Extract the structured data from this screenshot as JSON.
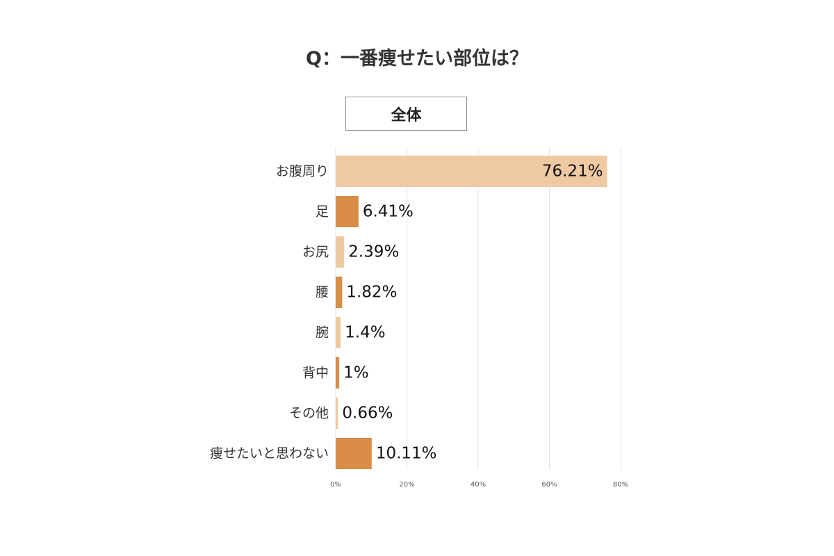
{
  "chart_data": {
    "type": "bar",
    "orientation": "horizontal",
    "title": "Q：一番痩せたい部位は？",
    "subgroup_label": "全体",
    "categories": [
      "お腹周り",
      "足",
      "お尻",
      "腰",
      "腕",
      "背中",
      "その他",
      "痩せたいと思わない"
    ],
    "values": [
      76.21,
      6.41,
      2.39,
      1.82,
      1.4,
      1,
      0.66,
      10.11
    ],
    "value_labels": [
      "76.21%",
      "6.41%",
      "2.39%",
      "1.82%",
      "1.4%",
      "1%",
      "0.66%",
      "10.11%"
    ],
    "x_ticks": [
      "0%",
      "20%",
      "40%",
      "60%",
      "80%"
    ],
    "xlim": [
      0,
      80
    ],
    "grid": true,
    "legend": "none",
    "colors": {
      "light": "#efc9a1",
      "dark": "#d98d46",
      "grid": "#e3e3e3"
    },
    "bar_color_pattern": [
      "light",
      "dark",
      "light",
      "dark",
      "light",
      "dark",
      "light",
      "dark"
    ]
  }
}
